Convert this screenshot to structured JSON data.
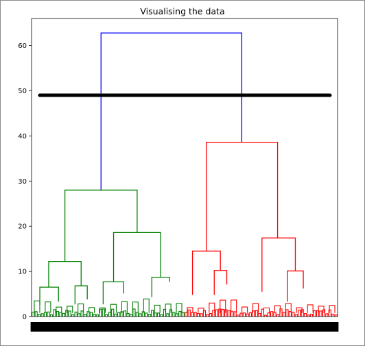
{
  "chart_data": {
    "type": "dendrogram",
    "title": "Visualising the data",
    "xlabel": "",
    "ylabel": "",
    "ylim": [
      0,
      66
    ],
    "yticks": [
      0,
      10,
      20,
      30,
      40,
      50,
      60
    ],
    "grid": false,
    "cut_line": {
      "y": 49,
      "color": "#000000"
    },
    "clusters": [
      {
        "color": "#008000",
        "leaf_range": [
          0,
          0.5
        ]
      },
      {
        "color": "#ff0000",
        "leaf_range": [
          0.5,
          1
        ]
      }
    ],
    "link_color_above": "#0000ff",
    "merges": [
      {
        "color": "#0000ff",
        "x_left": 0.227,
        "x_right": 0.687,
        "h": 62.8,
        "h_left": 28.0,
        "h_right": 38.6
      },
      {
        "color": "#008000",
        "x_left": 0.109,
        "x_right": 0.345,
        "h": 28.0,
        "h_left": 12.2,
        "h_right": 18.6
      },
      {
        "color": "#ff0000",
        "x_left": 0.571,
        "x_right": 0.804,
        "h": 38.6,
        "h_left": 14.5,
        "h_right": 17.4
      },
      {
        "color": "#008000",
        "x_left": 0.056,
        "x_right": 0.162,
        "h": 12.2,
        "h_left": 6.5,
        "h_right": 6.8
      },
      {
        "color": "#008000",
        "x_left": 0.268,
        "x_right": 0.422,
        "h": 18.6,
        "h_left": 7.7,
        "h_right": 8.7
      },
      {
        "color": "#ff0000",
        "x_left": 0.526,
        "x_right": 0.617,
        "h": 14.5,
        "h_left": 4.8,
        "h_right": 10.2
      },
      {
        "color": "#ff0000",
        "x_left": 0.753,
        "x_right": 0.862,
        "h": 17.4,
        "h_left": 5.5,
        "h_right": 10.1
      },
      {
        "color": "#008000",
        "x_left": 0.027,
        "x_right": 0.088,
        "h": 6.5,
        "h_left": 2.6,
        "h_right": 3.3
      },
      {
        "color": "#008000",
        "x_left": 0.142,
        "x_right": 0.182,
        "h": 6.8,
        "h_left": 2.7,
        "h_right": 3.8
      },
      {
        "color": "#008000",
        "x_left": 0.234,
        "x_right": 0.301,
        "h": 7.7,
        "h_left": 2.7,
        "h_right": 5.1
      },
      {
        "color": "#008000",
        "x_left": 0.393,
        "x_right": 0.451,
        "h": 8.7,
        "h_left": 4.3,
        "h_right": 7.7
      },
      {
        "color": "#ff0000",
        "x_left": 0.597,
        "x_right": 0.638,
        "h": 10.2,
        "h_left": 4.8,
        "h_right": 7.1
      },
      {
        "color": "#ff0000",
        "x_left": 0.836,
        "x_right": 0.888,
        "h": 10.1,
        "h_left": 3.3,
        "h_right": 6.2
      }
    ],
    "leaf_count": 200
  }
}
